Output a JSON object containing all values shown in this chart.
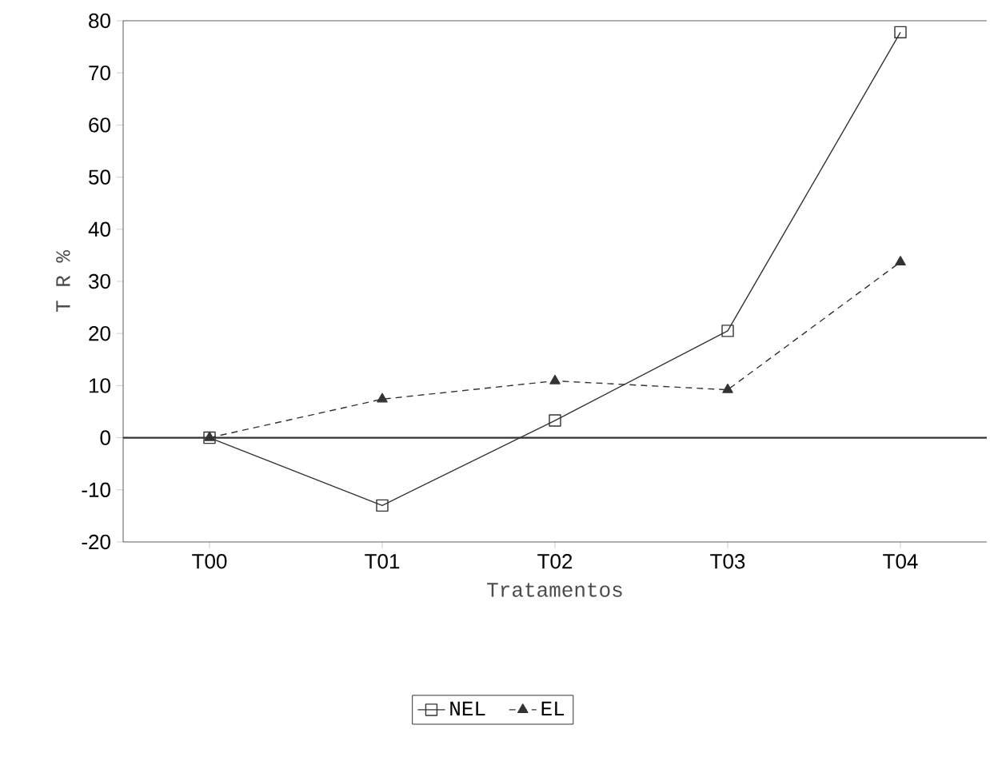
{
  "chart_data": {
    "type": "line",
    "xlabel": "Tratamentos",
    "ylabel": "T R %",
    "categories": [
      "T00",
      "T01",
      "T02",
      "T03",
      "T04"
    ],
    "series": [
      {
        "name": "NEL",
        "color": "#333333",
        "marker": "square",
        "line_style": "solid",
        "values": [
          0,
          -13,
          3.3,
          20.5,
          77.8
        ]
      },
      {
        "name": "EL",
        "color": "#333333",
        "marker": "triangle",
        "line_style": "dashed",
        "values": [
          0,
          7.4,
          10.9,
          9.2,
          33.7
        ]
      }
    ],
    "ylim": [
      -20,
      80
    ],
    "yticks": [
      -20,
      -10,
      0,
      10,
      20,
      30,
      40,
      50,
      60,
      70,
      80
    ],
    "ref_lines": [
      {
        "axis": "y",
        "value": 0,
        "color": "#333333"
      }
    ],
    "grid": false,
    "legend": "bottom"
  }
}
